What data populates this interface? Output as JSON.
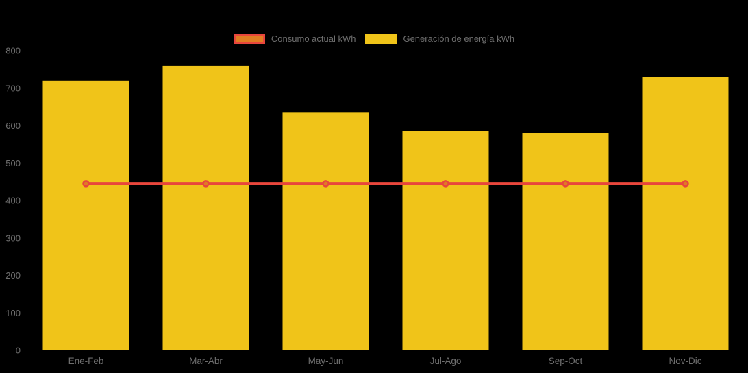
{
  "background_color": "#000000",
  "text_color": "#6E6E6E",
  "chart_data": {
    "type": "bar",
    "subtype": "bar-line-composed",
    "categories": [
      "Ene-Feb",
      "Mar-Abr",
      "May-Jun",
      "Jul-Ago",
      "Sep-Oct",
      "Nov-Dic"
    ],
    "series": [
      {
        "name": "Consumo actual kWh",
        "type": "line",
        "color": "#E8463C",
        "marker_fill": "#E07D23",
        "values": [
          445,
          445,
          445,
          445,
          445,
          445
        ]
      },
      {
        "name": "Generación de energía kWh",
        "type": "bar",
        "color": "#F0C419",
        "values": [
          720,
          760,
          635,
          585,
          580,
          730
        ]
      }
    ],
    "title": "",
    "xlabel": "",
    "ylabel": "",
    "ylim": [
      0,
      800
    ],
    "yticks": [
      0,
      100,
      200,
      300,
      400,
      500,
      600,
      700,
      800
    ],
    "legend_position": "top",
    "grid": false
  }
}
